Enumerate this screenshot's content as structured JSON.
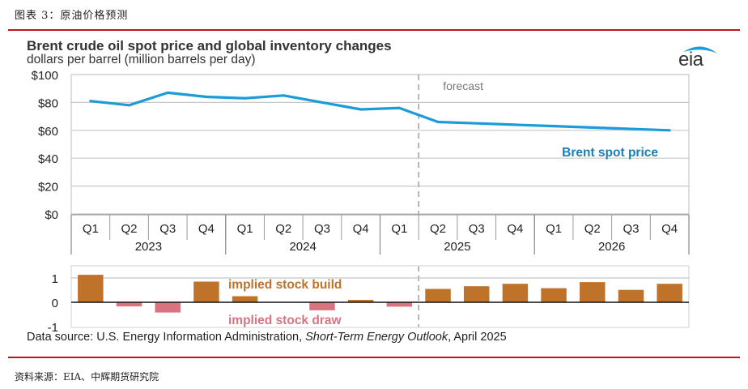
{
  "figure": {
    "caption": "图表 3：原油价格预测",
    "source_note": "资料来源：EIA、中辉期货研究院"
  },
  "header": {
    "title": "Brent crude oil spot price and global inventory changes",
    "subtitle": "dollars per barrel (million barrels per day)",
    "logo": "eia"
  },
  "footer": {
    "data_source_prefix": "Data source: U.S. Energy Information Administration, ",
    "data_source_italic": "Short-Term Energy Outlook",
    "data_source_suffix": ", April 2025"
  },
  "colors": {
    "price_line": "#1b9bd7",
    "price_label": "#1a7fb5",
    "stock_build": "#bf722a",
    "stock_draw": "#da7380",
    "grid": "#c8c8c8",
    "forecast_divider": "#a0a0a0",
    "rule": "#c0141b"
  },
  "chart_data": [
    {
      "type": "line",
      "title": "Brent crude oil spot price",
      "ylabel": "dollars per barrel",
      "ylim": [
        0,
        100
      ],
      "yticks": [
        0,
        20,
        40,
        60,
        80,
        100
      ],
      "ytick_labels": [
        "$0",
        "$20",
        "$40",
        "$60",
        "$80",
        "$100"
      ],
      "grid": true,
      "categories": [
        "Q1",
        "Q2",
        "Q3",
        "Q4",
        "Q1",
        "Q2",
        "Q3",
        "Q4",
        "Q1",
        "Q2",
        "Q3",
        "Q4",
        "Q1",
        "Q2",
        "Q3",
        "Q4"
      ],
      "years": [
        {
          "label": "2023",
          "quarters": 4
        },
        {
          "label": "2024",
          "quarters": 4
        },
        {
          "label": "2025",
          "quarters": 4
        },
        {
          "label": "2026",
          "quarters": 4
        }
      ],
      "series": [
        {
          "name": "Brent spot price",
          "values": [
            81,
            78,
            87,
            84,
            83,
            85,
            80,
            75,
            76,
            66,
            65,
            64,
            63,
            62,
            61,
            60
          ]
        }
      ],
      "series_label": "Brent spot price",
      "forecast_start_index": 9,
      "forecast_label": "forecast"
    },
    {
      "type": "bar",
      "title": "Global inventory changes",
      "ylabel": "million barrels per day",
      "ylim": [
        -1,
        1.5
      ],
      "yticks": [
        -1,
        0,
        1
      ],
      "ytick_labels": [
        "-1",
        "0",
        "1"
      ],
      "grid": true,
      "categories": [
        "Q1 2023",
        "Q2 2023",
        "Q3 2023",
        "Q4 2023",
        "Q1 2024",
        "Q2 2024",
        "Q3 2024",
        "Q4 2024",
        "Q1 2025",
        "Q2 2025",
        "Q3 2025",
        "Q4 2025",
        "Q1 2026",
        "Q2 2026",
        "Q3 2026",
        "Q4 2026"
      ],
      "series": [
        {
          "name": "implied stock change",
          "values": [
            1.13,
            -0.17,
            -0.42,
            0.85,
            0.25,
            0.0,
            -0.33,
            0.1,
            -0.18,
            0.55,
            0.66,
            0.76,
            0.58,
            0.83,
            0.51,
            0.76
          ]
        }
      ],
      "annotations": {
        "positive": "implied stock  build",
        "negative": "implied stock draw"
      },
      "forecast_start_index": 9
    }
  ]
}
